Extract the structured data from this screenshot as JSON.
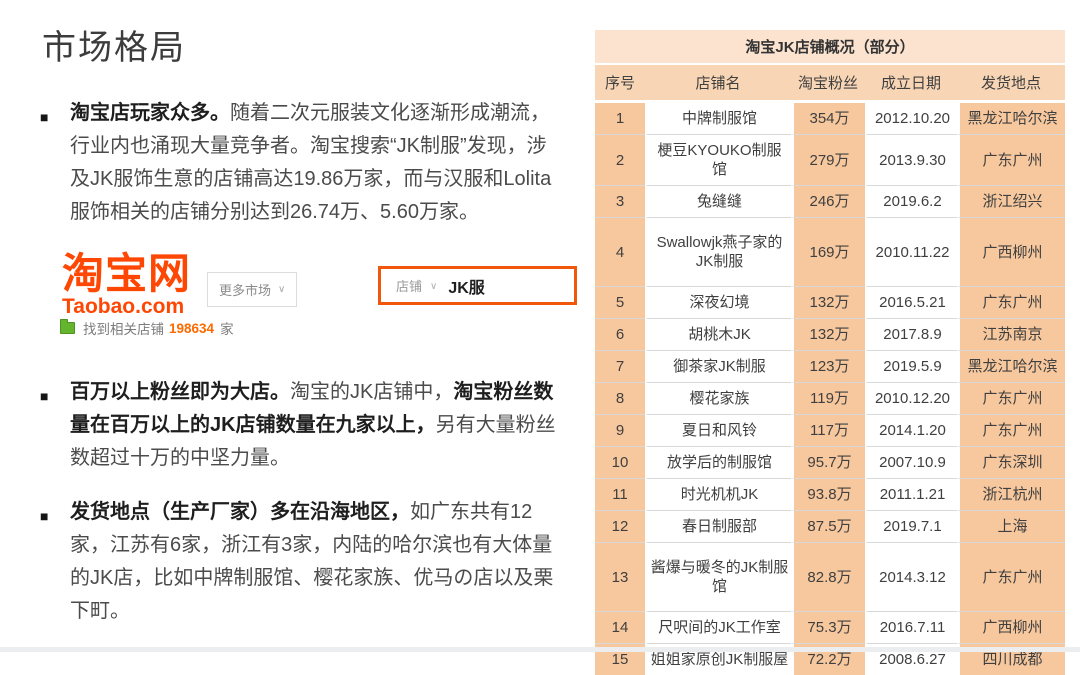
{
  "slide": {
    "title": "市场格局"
  },
  "bullets": [
    {
      "segments": [
        {
          "text": "淘宝店玩家众多。",
          "bold": true
        },
        {
          "text": "随着二次元服装文化逐渐形成潮流，行业内也涌现大量竞争者。淘宝搜索“JK制服”发现，涉及JK服饰生意的店铺高达19.86万家，而与汉服和Lolita服饰相关的店铺分别达到26.74万、5.60万家。",
          "bold": false
        }
      ]
    },
    {
      "segments": [
        {
          "text": "百万以上粉丝即为大店。",
          "bold": true
        },
        {
          "text": "淘宝的JK店铺中，",
          "bold": false
        },
        {
          "text": "淘宝粉丝数量在百万以上的JK店铺数量在九家以上，",
          "bold": true
        },
        {
          "text": "另有大量粉丝数超过十万的中坚力量。",
          "bold": false
        }
      ]
    },
    {
      "segments": [
        {
          "text": "发货地点（生产厂家）多在沿海地区，",
          "bold": true
        },
        {
          "text": "如广东共有12家，江苏有6家，浙江有3家，内陆的哈尔滨也有大体量的JK店，比如中牌制服馆、樱花家族、优马の店以及栗下町。",
          "bold": false
        }
      ]
    }
  ],
  "taobao": {
    "logo_cn": "淘宝网",
    "logo_en": "Taobao.com",
    "more_markets_label": "更多市场",
    "search_category": "店铺",
    "search_query": "JK服",
    "result_prefix": "找到相关店铺",
    "result_count": "198634",
    "result_suffix": "家"
  },
  "table": {
    "title": "淘宝JK店铺概况（部分）",
    "headers": [
      "序号",
      "店铺名",
      "淘宝粉丝",
      "成立日期",
      "发货地点"
    ],
    "rows": [
      [
        "1",
        "中牌制服馆",
        "354万",
        "2012.10.20",
        "黑龙江哈尔滨"
      ],
      [
        "2",
        "梗豆KYOUKO制服馆",
        "279万",
        "2013.9.30",
        "广东广州"
      ],
      [
        "3",
        "兔缝缝",
        "246万",
        "2019.6.2",
        "浙江绍兴"
      ],
      [
        "4",
        "Swallowjk燕子家的JK制服",
        "169万",
        "2010.11.22",
        "广西柳州"
      ],
      [
        "5",
        "深夜幻境",
        "132万",
        "2016.5.21",
        "广东广州"
      ],
      [
        "6",
        "胡桃木JK",
        "132万",
        "2017.8.9",
        "江苏南京"
      ],
      [
        "7",
        "御茶家JK制服",
        "123万",
        "2019.5.9",
        "黑龙江哈尔滨"
      ],
      [
        "8",
        "樱花家族",
        "119万",
        "2010.12.20",
        "广东广州"
      ],
      [
        "9",
        "夏日和风铃",
        "117万",
        "2014.1.20",
        "广东广州"
      ],
      [
        "10",
        "放学后的制服馆",
        "95.7万",
        "2007.10.9",
        "广东深圳"
      ],
      [
        "11",
        "时光机机JK",
        "93.8万",
        "2011.1.21",
        "浙江杭州"
      ],
      [
        "12",
        "春日制服部",
        "87.5万",
        "2019.7.1",
        "上海"
      ],
      [
        "13",
        "酱爆与暖冬的JK制服馆",
        "82.8万",
        "2014.3.12",
        "广东广州"
      ],
      [
        "14",
        "尺呎间的JK工作室",
        "75.3万",
        "2016.7.11",
        "广西柳州"
      ],
      [
        "15",
        "姐姐家原创JK制服屋",
        "72.2万",
        "2008.6.27",
        "四川成都"
      ]
    ]
  },
  "colors": {
    "taobao_orange": "#ff4704",
    "search_border_orange": "#f0570d",
    "count_orange": "#ff6a00",
    "table_title_bg": "#fbe3cf",
    "table_header_bg": "#f8d5b4",
    "table_shade_cell_bg": "#f7c89e",
    "folder_green": "#64b42d",
    "text_dark": "#3c3c3c"
  }
}
